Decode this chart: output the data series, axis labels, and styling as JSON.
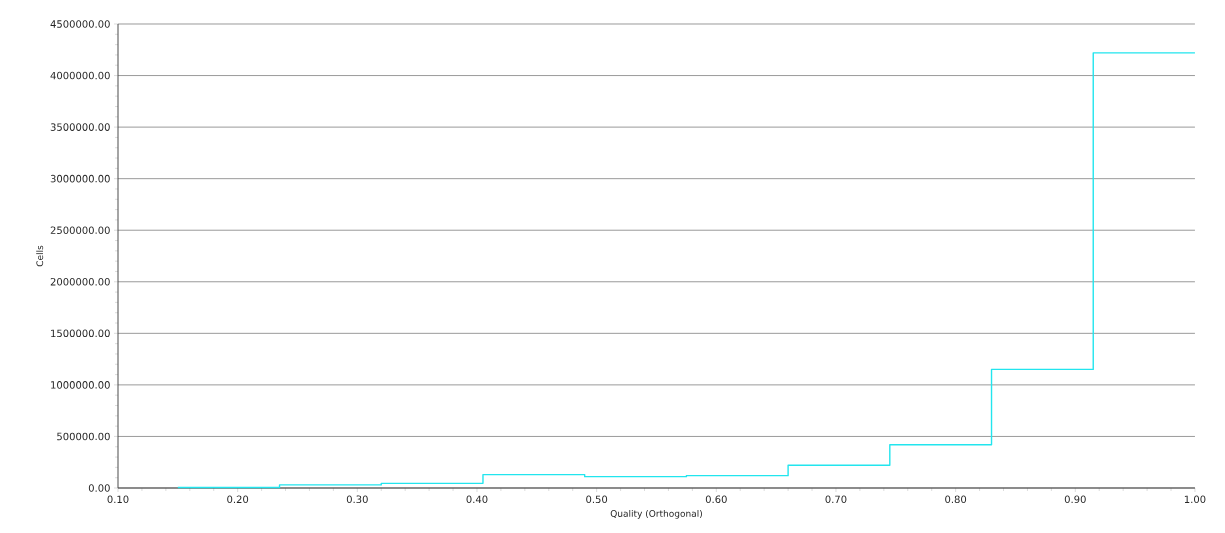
{
  "chart_data": {
    "type": "histogram",
    "xlabel": "Quality (Orthogonal)",
    "ylabel": "Cells",
    "bins": [
      0.15,
      0.235,
      0.32,
      0.405,
      0.49,
      0.575,
      0.66,
      0.745,
      0.83,
      0.915,
      1.0
    ],
    "values": [
      5000,
      30000,
      45000,
      130000,
      110000,
      120000,
      220000,
      420000,
      1150000,
      4220000
    ],
    "color": "#22e5ee",
    "xlim": [
      0.1,
      1.0
    ],
    "xticks": [
      {
        "value": 0.1,
        "label": "0.10"
      },
      {
        "value": 0.2,
        "label": "0.20"
      },
      {
        "value": 0.3,
        "label": "0.30"
      },
      {
        "value": 0.4,
        "label": "0.40"
      },
      {
        "value": 0.5,
        "label": "0.50"
      },
      {
        "value": 0.6,
        "label": "0.60"
      },
      {
        "value": 0.7,
        "label": "0.70"
      },
      {
        "value": 0.8,
        "label": "0.80"
      },
      {
        "value": 0.9,
        "label": "0.90"
      },
      {
        "value": 1.0,
        "label": "1.00"
      }
    ],
    "ylim": [
      0,
      4500000
    ],
    "yticks": [
      {
        "value": 0,
        "label": "0.00"
      },
      {
        "value": 500000,
        "label": "500000.00"
      },
      {
        "value": 1000000,
        "label": "1000000.00"
      },
      {
        "value": 1500000,
        "label": "1500000.00"
      },
      {
        "value": 2000000,
        "label": "2000000.00"
      },
      {
        "value": 2500000,
        "label": "2500000.00"
      },
      {
        "value": 3000000,
        "label": "3000000.00"
      },
      {
        "value": 3500000,
        "label": "3500000.00"
      },
      {
        "value": 4000000,
        "label": "4000000.00"
      },
      {
        "value": 4500000,
        "label": "4500000.00"
      }
    ],
    "grid": "y"
  }
}
